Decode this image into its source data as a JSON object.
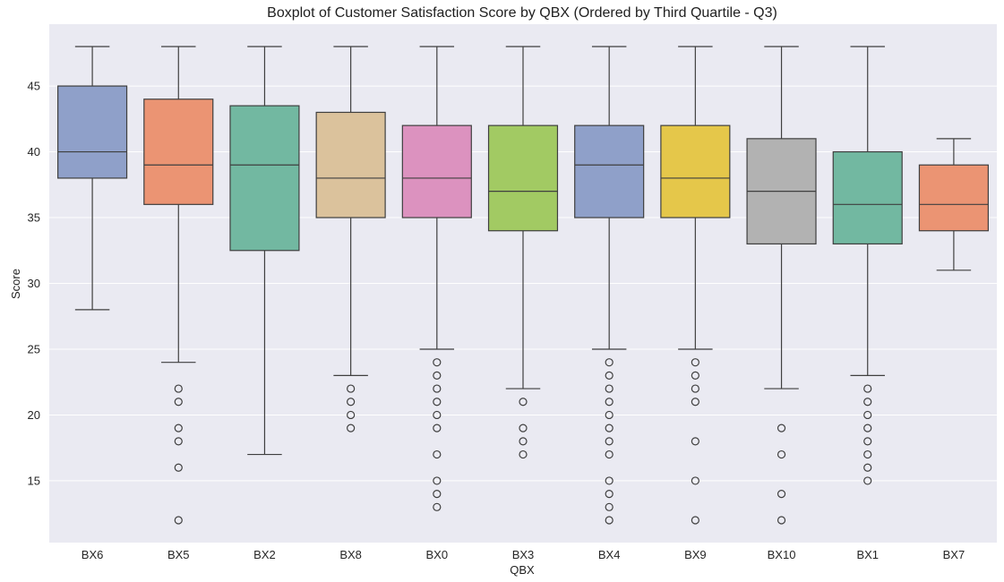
{
  "chart_data": {
    "type": "box",
    "title": "Boxplot of Customer Satisfaction Score by QBX (Ordered by Third Quartile - Q3)",
    "xlabel": "QBX",
    "ylabel": "Score",
    "ylim": [
      10.3,
      49.7
    ],
    "yticks": [
      15,
      20,
      25,
      30,
      35,
      40,
      45
    ],
    "grid": true,
    "categories": [
      "BX6",
      "BX5",
      "BX2",
      "BX8",
      "BX0",
      "BX3",
      "BX4",
      "BX9",
      "BX10",
      "BX1",
      "BX7"
    ],
    "colors": [
      "#8fa0c9",
      "#eb9473",
      "#72b8a1",
      "#dbc29c",
      "#dc92bf",
      "#a2ca63",
      "#8fa0c9",
      "#e5c74a",
      "#b2b2b2",
      "#72b8a1",
      "#eb9473"
    ],
    "boxes": [
      {
        "category": "BX6",
        "whisker_low": 28,
        "q1": 38,
        "median": 40,
        "q3": 45,
        "whisker_high": 48,
        "outliers": []
      },
      {
        "category": "BX5",
        "whisker_low": 24,
        "q1": 36,
        "median": 39,
        "q3": 44,
        "whisker_high": 48,
        "outliers": [
          22,
          21,
          19,
          18,
          16,
          12
        ]
      },
      {
        "category": "BX2",
        "whisker_low": 17,
        "q1": 32.5,
        "median": 39,
        "q3": 43.5,
        "whisker_high": 48,
        "outliers": []
      },
      {
        "category": "BX8",
        "whisker_low": 23,
        "q1": 35,
        "median": 38,
        "q3": 43,
        "whisker_high": 48,
        "outliers": [
          22,
          21,
          20,
          19
        ]
      },
      {
        "category": "BX0",
        "whisker_low": 25,
        "q1": 35,
        "median": 38,
        "q3": 42,
        "whisker_high": 48,
        "outliers": [
          24,
          23,
          22,
          21,
          20,
          19,
          17,
          15,
          14,
          13
        ]
      },
      {
        "category": "BX3",
        "whisker_low": 22,
        "q1": 34,
        "median": 37,
        "q3": 42,
        "whisker_high": 48,
        "outliers": [
          21,
          19,
          18,
          17
        ]
      },
      {
        "category": "BX4",
        "whisker_low": 25,
        "q1": 35,
        "median": 39,
        "q3": 42,
        "whisker_high": 48,
        "outliers": [
          24,
          23,
          22,
          21,
          20,
          19,
          18,
          17,
          15,
          14,
          13,
          12
        ]
      },
      {
        "category": "BX9",
        "whisker_low": 25,
        "q1": 35,
        "median": 38,
        "q3": 42,
        "whisker_high": 48,
        "outliers": [
          24,
          23,
          22,
          21,
          18,
          15,
          12
        ]
      },
      {
        "category": "BX10",
        "whisker_low": 22,
        "q1": 33,
        "median": 37,
        "q3": 41,
        "whisker_high": 48,
        "outliers": [
          19,
          17,
          14,
          12
        ]
      },
      {
        "category": "BX1",
        "whisker_low": 23,
        "q1": 33,
        "median": 36,
        "q3": 40,
        "whisker_high": 48,
        "outliers": [
          22,
          21,
          20,
          19,
          18,
          17,
          16,
          15
        ]
      },
      {
        "category": "BX7",
        "whisker_low": 31,
        "q1": 34,
        "median": 36,
        "q3": 39,
        "whisker_high": 41,
        "outliers": []
      }
    ]
  }
}
